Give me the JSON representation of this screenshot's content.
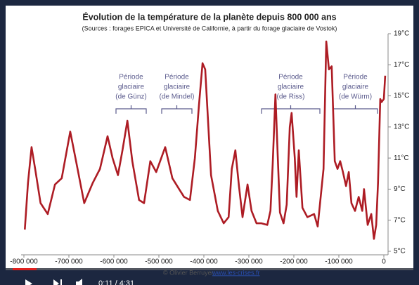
{
  "chart_data": {
    "type": "line",
    "title": "Évolution de la température de la planète depuis 800 000 ans",
    "subtitle": "(Sources : forages EPICA et Université de Californie, à partir du forage glaciaire de Vostok)",
    "annotations": [
      [
        "Période",
        "glaciaire",
        "(de Günz)"
      ],
      [
        "Période",
        "glaciaire",
        "(de Mindel)"
      ],
      [
        "Période",
        "glaciaire",
        "(de Riss)"
      ],
      [
        "Période",
        "glaciaire",
        "(de Würm)"
      ]
    ],
    "xlim": [
      -800000,
      0
    ],
    "ylim": [
      5,
      19
    ],
    "xticks": [
      {
        "value": -800000,
        "label": "-800 000"
      },
      {
        "value": -700000,
        "label": "-700 000"
      },
      {
        "value": -600000,
        "label": "-600 000"
      },
      {
        "value": -500000,
        "label": "-500 000"
      },
      {
        "value": -400000,
        "label": "-400 000"
      },
      {
        "value": -300000,
        "label": "-300 000"
      },
      {
        "value": -200000,
        "label": "-200 000"
      },
      {
        "value": -100000,
        "label": "-100 000"
      },
      0
    ],
    "yticks": [
      {
        "value": 5,
        "label": "5°C"
      },
      {
        "value": 7,
        "label": "7°C"
      },
      {
        "value": 9,
        "label": "9°C"
      },
      {
        "value": 11,
        "label": "11°C"
      },
      {
        "value": 13,
        "label": "13°C"
      },
      {
        "value": 15,
        "label": "15°C"
      },
      {
        "value": 17,
        "label": "17°C"
      },
      {
        "value": 19,
        "label": "19°C"
      }
    ],
    "color": "#ad1c24",
    "x": [
      -798000,
      -791000,
      -783000,
      -775000,
      -763000,
      -747000,
      -731000,
      -716000,
      -697000,
      -684000,
      -666000,
      -647000,
      -631000,
      -614000,
      -603000,
      -591000,
      -581000,
      -570000,
      -559000,
      -544000,
      -533000,
      -519000,
      -506000,
      -486000,
      -470000,
      -455000,
      -444000,
      -431000,
      -420000,
      -411000,
      -403000,
      -397000,
      -384000,
      -369000,
      -356000,
      -345000,
      -338000,
      -330000,
      -322000,
      -314000,
      -303000,
      -294000,
      -283000,
      -272000,
      -259000,
      -252000,
      -247000,
      -241000,
      -236000,
      -231000,
      -223000,
      -216000,
      -209000,
      -205000,
      -198000,
      -194000,
      -189000,
      -181000,
      -170000,
      -155000,
      -147000,
      -134000,
      -128000,
      -122000,
      -116000,
      -109000,
      -103000,
      -97000,
      -91000,
      -84000,
      -78000,
      -72000,
      -64000,
      -56000,
      -48000,
      -44000,
      -36000,
      -28000,
      -22000,
      -17000,
      -13000,
      -8000,
      -5000,
      0,
      3000
    ],
    "values": [
      6.4,
      9.4,
      11.7,
      10.3,
      8.1,
      7.4,
      9.3,
      9.7,
      12.7,
      10.8,
      8.1,
      9.4,
      10.3,
      12.4,
      11.0,
      9.9,
      11.5,
      13.4,
      10.8,
      8.3,
      8.1,
      10.8,
      10.1,
      11.7,
      9.7,
      9.0,
      8.5,
      8.3,
      11.0,
      14.4,
      17.1,
      16.7,
      9.9,
      7.6,
      6.8,
      7.2,
      10.3,
      11.5,
      9.2,
      7.2,
      9.3,
      7.6,
      6.8,
      6.8,
      6.7,
      7.6,
      10.6,
      15.1,
      11.2,
      7.5,
      6.8,
      8.0,
      13.0,
      13.9,
      11.0,
      8.5,
      11.5,
      7.8,
      7.2,
      7.4,
      6.6,
      10.3,
      18.5,
      16.7,
      16.9,
      10.8,
      10.3,
      10.8,
      10.1,
      9.2,
      10.1,
      8.1,
      7.6,
      8.5,
      7.6,
      9.0,
      6.7,
      7.4,
      5.8,
      6.7,
      9.4,
      14.8,
      14.6,
      14.8,
      16.3
    ]
  },
  "credit": {
    "author": "© Olivier Berruyer, ",
    "link": "www.les-crises.fr"
  },
  "player": {
    "time": "0:11 / 4:31"
  }
}
